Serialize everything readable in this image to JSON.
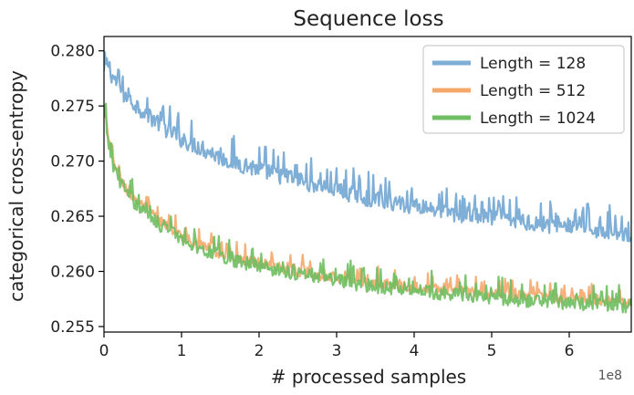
{
  "chart_data": {
    "type": "line",
    "title": "Sequence loss",
    "xlabel": "# processed samples",
    "ylabel": "categorical cross-entropy",
    "x_offset_label": "1e8",
    "xlim": [
      0,
      6.8
    ],
    "ylim": [
      0.2545,
      0.2813
    ],
    "x_ticks": [
      0,
      1,
      2,
      3,
      4,
      5,
      6
    ],
    "x_tick_labels": [
      "0",
      "1",
      "2",
      "3",
      "4",
      "5",
      "6"
    ],
    "y_ticks": [
      0.255,
      0.26,
      0.265,
      0.27,
      0.275,
      0.28
    ],
    "y_tick_labels": [
      "0.255",
      "0.260",
      "0.265",
      "0.270",
      "0.275",
      "0.280"
    ],
    "grid": false,
    "legend_position": "top-right",
    "series": [
      {
        "name": "Length = 128",
        "color": "#7fafd6",
        "x": [
          0,
          0.05,
          0.1,
          0.2,
          0.3,
          0.5,
          0.75,
          1.0,
          1.25,
          1.5,
          2.0,
          2.5,
          3.0,
          3.5,
          4.0,
          4.5,
          5.0,
          5.5,
          6.0,
          6.5,
          6.8
        ],
        "values": [
          0.2778,
          0.2788,
          0.2777,
          0.2765,
          0.2755,
          0.2745,
          0.2731,
          0.2719,
          0.2711,
          0.2702,
          0.2691,
          0.2682,
          0.2673,
          0.2664,
          0.2659,
          0.2652,
          0.2648,
          0.2643,
          0.264,
          0.2636,
          0.2634
        ],
        "noise_amplitude": 0.0011
      },
      {
        "name": "Length = 512",
        "color": "#f4a96a",
        "x": [
          0,
          0.05,
          0.1,
          0.2,
          0.3,
          0.5,
          0.75,
          1.0,
          1.25,
          1.5,
          2.0,
          2.5,
          3.0,
          3.5,
          4.0,
          4.5,
          5.0,
          5.5,
          6.0,
          6.5,
          6.8
        ],
        "values": [
          0.2748,
          0.2722,
          0.2704,
          0.2685,
          0.2672,
          0.2658,
          0.2643,
          0.2632,
          0.2623,
          0.2616,
          0.2607,
          0.26,
          0.2594,
          0.2589,
          0.2585,
          0.2582,
          0.2579,
          0.2577,
          0.2575,
          0.2573,
          0.2572
        ],
        "noise_amplitude": 0.0007
      },
      {
        "name": "Length = 1024",
        "color": "#6fbe62",
        "x": [
          0,
          0.05,
          0.1,
          0.2,
          0.3,
          0.5,
          0.75,
          1.0,
          1.25,
          1.5,
          2.0,
          2.5,
          3.0,
          3.5,
          4.0,
          4.5,
          5.0,
          5.5,
          6.0,
          6.5,
          6.8
        ],
        "values": [
          0.2745,
          0.2719,
          0.27,
          0.2682,
          0.2669,
          0.2655,
          0.264,
          0.2629,
          0.262,
          0.2613,
          0.2604,
          0.2597,
          0.2591,
          0.2586,
          0.2582,
          0.2579,
          0.2576,
          0.2573,
          0.2571,
          0.2569,
          0.2568
        ],
        "noise_amplitude": 0.0009
      }
    ]
  }
}
